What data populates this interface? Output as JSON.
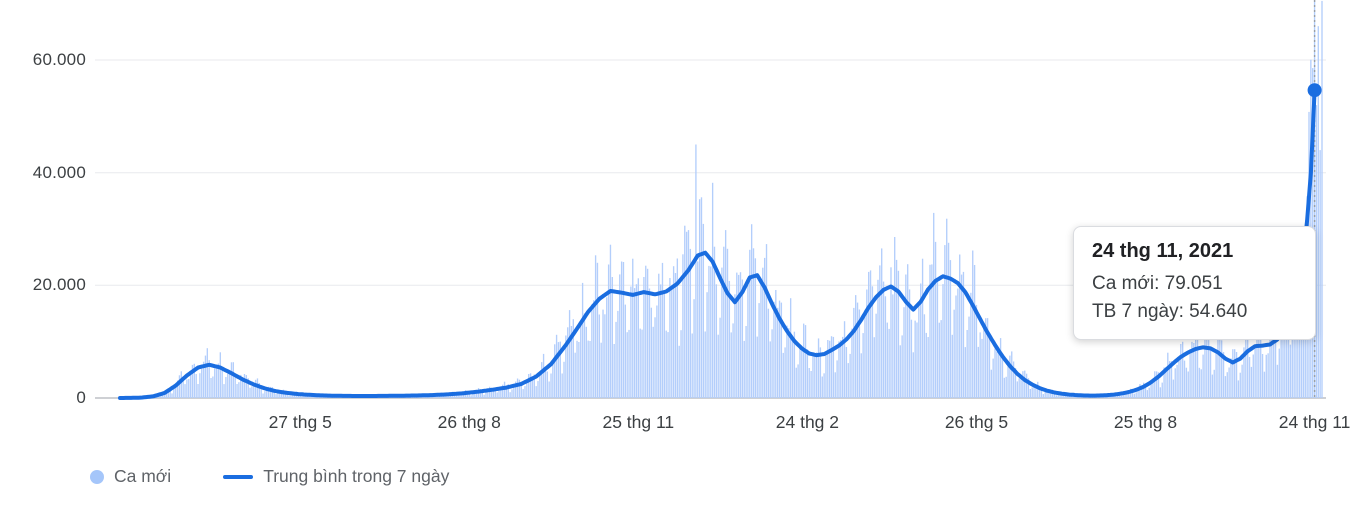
{
  "chart_data": {
    "type": "bar+line",
    "title": "",
    "xlabel": "",
    "ylabel": "",
    "y_max": 60000,
    "grid": "horizontal",
    "legend_position": "bottom-left",
    "y_ticks": [
      {
        "value": 0,
        "label": "0"
      },
      {
        "value": 20000,
        "label": "20.000"
      },
      {
        "value": 40000,
        "label": "40.000"
      },
      {
        "value": 60000,
        "label": "60.000"
      }
    ],
    "x_ticks": [
      {
        "day": 97,
        "label": "27 thg 5"
      },
      {
        "day": 188,
        "label": "26 thg 8"
      },
      {
        "day": 279,
        "label": "25 thg 11"
      },
      {
        "day": 370,
        "label": "24 thg 2"
      },
      {
        "day": 461,
        "label": "26 thg 5"
      },
      {
        "day": 552,
        "label": "25 thg 8"
      },
      {
        "day": 643,
        "label": "24 thg 11"
      }
    ],
    "total_days": 647,
    "legend": [
      {
        "label": "Ca mới",
        "swatch": "dot"
      },
      {
        "label": "Trung bình trong 7 ngày",
        "swatch": "line"
      }
    ],
    "series": [
      {
        "name": "Ca mới",
        "type": "bar"
      },
      {
        "name": "Trung bình trong 7 ngày",
        "type": "line",
        "points": [
          [
            0,
            0
          ],
          [
            6,
            20
          ],
          [
            12,
            80
          ],
          [
            18,
            300
          ],
          [
            24,
            900
          ],
          [
            30,
            2200
          ],
          [
            36,
            4000
          ],
          [
            42,
            5400
          ],
          [
            48,
            5900
          ],
          [
            54,
            5400
          ],
          [
            60,
            4400
          ],
          [
            66,
            3300
          ],
          [
            72,
            2400
          ],
          [
            78,
            1700
          ],
          [
            84,
            1200
          ],
          [
            90,
            900
          ],
          [
            96,
            700
          ],
          [
            102,
            560
          ],
          [
            108,
            470
          ],
          [
            114,
            410
          ],
          [
            120,
            380
          ],
          [
            128,
            350
          ],
          [
            136,
            355
          ],
          [
            144,
            380
          ],
          [
            152,
            410
          ],
          [
            160,
            450
          ],
          [
            168,
            520
          ],
          [
            176,
            640
          ],
          [
            184,
            820
          ],
          [
            192,
            1100
          ],
          [
            200,
            1450
          ],
          [
            208,
            1850
          ],
          [
            216,
            2500
          ],
          [
            224,
            3800
          ],
          [
            232,
            6000
          ],
          [
            240,
            9400
          ],
          [
            246,
            12300
          ],
          [
            252,
            15300
          ],
          [
            258,
            17600
          ],
          [
            264,
            19000
          ],
          [
            270,
            18700
          ],
          [
            276,
            18300
          ],
          [
            282,
            18800
          ],
          [
            288,
            18400
          ],
          [
            294,
            18900
          ],
          [
            300,
            20300
          ],
          [
            306,
            22700
          ],
          [
            311,
            25300
          ],
          [
            315,
            25800
          ],
          [
            319,
            24200
          ],
          [
            323,
            21300
          ],
          [
            327,
            18600
          ],
          [
            331,
            17000
          ],
          [
            335,
            18800
          ],
          [
            339,
            21400
          ],
          [
            343,
            21800
          ],
          [
            347,
            19600
          ],
          [
            351,
            16700
          ],
          [
            355,
            14100
          ],
          [
            359,
            11900
          ],
          [
            363,
            10100
          ],
          [
            367,
            8800
          ],
          [
            371,
            7900
          ],
          [
            375,
            7600
          ],
          [
            379,
            7800
          ],
          [
            383,
            8500
          ],
          [
            387,
            9300
          ],
          [
            391,
            10400
          ],
          [
            395,
            11900
          ],
          [
            399,
            13900
          ],
          [
            403,
            16100
          ],
          [
            407,
            17900
          ],
          [
            411,
            19200
          ],
          [
            415,
            19800
          ],
          [
            419,
            18900
          ],
          [
            423,
            17100
          ],
          [
            427,
            15700
          ],
          [
            431,
            17100
          ],
          [
            435,
            19300
          ],
          [
            439,
            20800
          ],
          [
            443,
            21600
          ],
          [
            447,
            21200
          ],
          [
            451,
            20400
          ],
          [
            455,
            18800
          ],
          [
            459,
            16500
          ],
          [
            463,
            14000
          ],
          [
            467,
            11600
          ],
          [
            471,
            9400
          ],
          [
            475,
            7400
          ],
          [
            479,
            5700
          ],
          [
            483,
            4300
          ],
          [
            487,
            3200
          ],
          [
            491,
            2400
          ],
          [
            495,
            1750
          ],
          [
            499,
            1300
          ],
          [
            503,
            980
          ],
          [
            507,
            760
          ],
          [
            511,
            610
          ],
          [
            515,
            510
          ],
          [
            519,
            450
          ],
          [
            523,
            425
          ],
          [
            527,
            440
          ],
          [
            531,
            500
          ],
          [
            535,
            610
          ],
          [
            539,
            790
          ],
          [
            543,
            1060
          ],
          [
            547,
            1450
          ],
          [
            551,
            2000
          ],
          [
            555,
            2800
          ],
          [
            559,
            3800
          ],
          [
            563,
            5000
          ],
          [
            567,
            6200
          ],
          [
            571,
            7300
          ],
          [
            575,
            8100
          ],
          [
            579,
            8700
          ],
          [
            583,
            9000
          ],
          [
            587,
            8800
          ],
          [
            591,
            8100
          ],
          [
            595,
            7000
          ],
          [
            599,
            6300
          ],
          [
            603,
            7000
          ],
          [
            607,
            8300
          ],
          [
            611,
            9200
          ],
          [
            615,
            9300
          ],
          [
            619,
            9500
          ],
          [
            623,
            10400
          ],
          [
            627,
            12300
          ],
          [
            631,
            15500
          ],
          [
            634,
            19500
          ],
          [
            637,
            25500
          ],
          [
            639,
            31500
          ],
          [
            641,
            40000
          ],
          [
            642,
            47000
          ],
          [
            643,
            54640
          ]
        ]
      }
    ],
    "bar_overrides": {
      "310": 45000,
      "643": 79051,
      "644": 52000,
      "645": 66000,
      "646": 44000,
      "647": 70500
    },
    "bar_synthesis": {
      "seed": 7,
      "weekly_factors": [
        0.55,
        0.7,
        0.97,
        1.15,
        1.3,
        1.24,
        1.02
      ],
      "jitter": [
        0.8,
        1.25
      ]
    },
    "highlight": {
      "day": 643,
      "avg_value": 54640,
      "bar_value": 79051
    }
  },
  "tooltip": {
    "date": "24 thg 11, 2021",
    "rows": [
      {
        "label": "Ca mới",
        "value": "79.051",
        "text": "Ca mới: 79.051"
      },
      {
        "label": "TB 7 ngày",
        "value": "54.640",
        "text": "TB 7 ngày: 54.640"
      }
    ]
  },
  "colors": {
    "bar": "#b3cefb",
    "bar_legend": "#a5c6fa",
    "line": "#1a6de0",
    "grid": "#e8eaed",
    "axis_line": "#bdc1c6",
    "hover_line": "#9aa0a6",
    "axis_text": "#3c4043",
    "legend_text": "#5f6368"
  }
}
